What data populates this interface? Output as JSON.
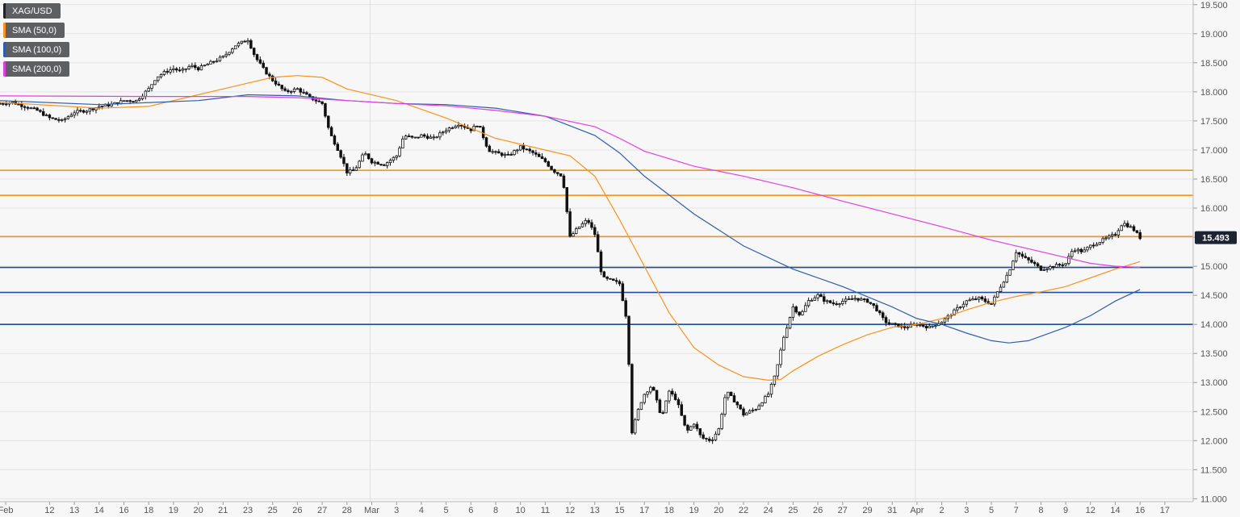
{
  "legend": [
    {
      "label": "XAG/USD",
      "color": "#222222",
      "icon": "square-swatch"
    },
    {
      "label": "SMA (50,0)",
      "color": "#f7931e",
      "icon": "square-swatch"
    },
    {
      "label": "SMA (100,0)",
      "color": "#2f5ea8",
      "icon": "square-swatch"
    },
    {
      "label": "SMA (200,0)",
      "color": "#e040e0",
      "icon": "square-swatch"
    }
  ],
  "last_price": {
    "label": "15.493",
    "value": 15.493,
    "color": "#1c2433"
  },
  "chart_data": {
    "type": "candlestick",
    "symbol": "XAG/USD",
    "y_ticks": [
      11.0,
      11.5,
      12.0,
      12.5,
      13.0,
      13.5,
      14.0,
      14.5,
      15.0,
      15.5,
      16.0,
      16.5,
      17.0,
      17.5,
      18.0,
      18.5,
      19.0,
      19.5
    ],
    "y_tick_labels": [
      "11.000",
      "11.500",
      "12.000",
      "12.500",
      "13.000",
      "13.500",
      "14.000",
      "14.500",
      "15.000",
      "15.500",
      "16.000",
      "16.500",
      "17.000",
      "17.500",
      "18.000",
      "18.500",
      "19.000",
      "19.500"
    ],
    "ylim": [
      10.95,
      19.58
    ],
    "x_labels": [
      "Feb",
      "12",
      "13",
      "14",
      "16",
      "18",
      "19",
      "20",
      "21",
      "23",
      "25",
      "26",
      "27",
      "28",
      "Mar",
      "3",
      "4",
      "5",
      "6",
      "8",
      "10",
      "11",
      "12",
      "13",
      "15",
      "17",
      "18",
      "19",
      "20",
      "22",
      "24",
      "25",
      "26",
      "27",
      "29",
      "31",
      "Apr",
      "2",
      "3",
      "5",
      "7",
      "8",
      "9",
      "12",
      "14",
      "16",
      "17"
    ],
    "x_label_sessions": [
      0,
      2,
      3,
      4,
      5,
      6,
      7,
      8,
      9,
      10,
      11,
      12,
      13,
      14,
      15,
      16,
      17,
      18,
      19,
      20,
      21,
      22,
      23,
      24,
      25,
      26,
      27,
      28,
      29,
      30,
      31,
      32,
      33,
      34,
      35,
      36,
      37,
      38,
      39,
      40,
      41,
      42,
      43,
      44,
      45,
      46,
      47
    ],
    "sessions": 48,
    "horizontal_levels": [
      {
        "value": 16.65,
        "color": "#f7931e"
      },
      {
        "value": 16.22,
        "color": "#f7931e"
      },
      {
        "value": 15.51,
        "color": "#f7931e"
      },
      {
        "value": 14.98,
        "color": "#1a4f9c"
      },
      {
        "value": 14.55,
        "color": "#1a4f9c"
      },
      {
        "value": 14.0,
        "color": "#1a4f9c"
      }
    ],
    "close_series": [
      [
        0,
        17.8
      ],
      [
        0.5,
        17.82
      ],
      [
        1,
        17.75
      ],
      [
        1.5,
        17.68
      ],
      [
        2,
        17.55
      ],
      [
        2.5,
        17.5
      ],
      [
        3,
        17.65
      ],
      [
        3.5,
        17.68
      ],
      [
        4,
        17.75
      ],
      [
        4.5,
        17.78
      ],
      [
        5,
        17.85
      ],
      [
        5.5,
        17.85
      ],
      [
        6,
        18.05
      ],
      [
        6.3,
        18.25
      ],
      [
        6.7,
        18.35
      ],
      [
        7,
        18.4
      ],
      [
        7.3,
        18.35
      ],
      [
        7.7,
        18.45
      ],
      [
        8,
        18.4
      ],
      [
        8.5,
        18.5
      ],
      [
        9,
        18.6
      ],
      [
        9.5,
        18.8
      ],
      [
        10,
        18.9
      ],
      [
        10.3,
        18.6
      ],
      [
        10.7,
        18.35
      ],
      [
        11,
        18.2
      ],
      [
        11.5,
        18.0
      ],
      [
        12,
        18.05
      ],
      [
        12.5,
        17.9
      ],
      [
        13,
        17.8
      ],
      [
        13.3,
        17.3
      ],
      [
        13.7,
        16.95
      ],
      [
        14,
        16.62
      ],
      [
        14.3,
        16.65
      ],
      [
        14.7,
        16.95
      ],
      [
        15,
        16.8
      ],
      [
        15.5,
        16.75
      ],
      [
        16,
        16.9
      ],
      [
        16.3,
        17.25
      ],
      [
        16.7,
        17.2
      ],
      [
        17,
        17.25
      ],
      [
        17.5,
        17.2
      ],
      [
        18,
        17.35
      ],
      [
        18.5,
        17.45
      ],
      [
        19,
        17.35
      ],
      [
        19.3,
        17.45
      ],
      [
        19.7,
        17.0
      ],
      [
        20,
        16.95
      ],
      [
        20.5,
        16.9
      ],
      [
        21,
        17.05
      ],
      [
        21.5,
        16.95
      ],
      [
        22,
        16.8
      ],
      [
        22.3,
        16.65
      ],
      [
        22.7,
        16.55
      ],
      [
        23,
        15.5
      ],
      [
        23.3,
        15.65
      ],
      [
        23.7,
        15.8
      ],
      [
        24,
        15.55
      ],
      [
        24.3,
        14.8
      ],
      [
        24.7,
        14.75
      ],
      [
        25,
        14.7
      ],
      [
        25.3,
        14.05
      ],
      [
        25.5,
        12.15
      ],
      [
        25.8,
        12.6
      ],
      [
        26,
        12.8
      ],
      [
        26.3,
        12.95
      ],
      [
        26.7,
        12.4
      ],
      [
        27,
        12.85
      ],
      [
        27.3,
        12.7
      ],
      [
        27.7,
        12.15
      ],
      [
        28,
        12.3
      ],
      [
        28.3,
        12.05
      ],
      [
        28.7,
        12.0
      ],
      [
        29,
        12.2
      ],
      [
        29.3,
        12.85
      ],
      [
        29.7,
        12.65
      ],
      [
        30,
        12.45
      ],
      [
        30.5,
        12.55
      ],
      [
        31,
        12.8
      ],
      [
        31.3,
        13.15
      ],
      [
        31.6,
        13.75
      ],
      [
        32,
        14.3
      ],
      [
        32.3,
        14.15
      ],
      [
        32.6,
        14.4
      ],
      [
        33,
        14.5
      ],
      [
        33.3,
        14.4
      ],
      [
        33.7,
        14.35
      ],
      [
        34,
        14.4
      ],
      [
        34.5,
        14.45
      ],
      [
        35,
        14.4
      ],
      [
        35.3,
        14.3
      ],
      [
        35.7,
        14.05
      ],
      [
        36,
        14.0
      ],
      [
        36.5,
        13.95
      ],
      [
        37,
        14.0
      ],
      [
        37.5,
        13.95
      ],
      [
        38,
        14.05
      ],
      [
        38.3,
        14.15
      ],
      [
        38.7,
        14.3
      ],
      [
        39,
        14.4
      ],
      [
        39.5,
        14.45
      ],
      [
        40,
        14.35
      ],
      [
        40.3,
        14.6
      ],
      [
        40.7,
        14.9
      ],
      [
        41,
        15.25
      ],
      [
        41.3,
        15.15
      ],
      [
        41.7,
        15.05
      ],
      [
        42,
        14.95
      ],
      [
        42.5,
        15.0
      ],
      [
        43,
        15.05
      ],
      [
        43.3,
        15.3
      ],
      [
        43.7,
        15.25
      ],
      [
        44,
        15.35
      ],
      [
        44.5,
        15.45
      ],
      [
        45,
        15.55
      ],
      [
        45.3,
        15.75
      ],
      [
        45.7,
        15.65
      ],
      [
        46,
        15.493
      ]
    ],
    "sma50": [
      [
        0,
        17.82
      ],
      [
        4,
        17.72
      ],
      [
        6,
        17.75
      ],
      [
        8,
        17.95
      ],
      [
        10,
        18.15
      ],
      [
        11,
        18.25
      ],
      [
        12,
        18.28
      ],
      [
        13,
        18.25
      ],
      [
        14,
        18.05
      ],
      [
        16,
        17.85
      ],
      [
        18,
        17.55
      ],
      [
        20,
        17.2
      ],
      [
        22,
        17.0
      ],
      [
        23,
        16.9
      ],
      [
        24,
        16.55
      ],
      [
        25,
        15.8
      ],
      [
        26,
        15.0
      ],
      [
        27,
        14.2
      ],
      [
        28,
        13.6
      ],
      [
        29,
        13.3
      ],
      [
        30,
        13.1
      ],
      [
        31,
        13.04
      ],
      [
        31.5,
        13.05
      ],
      [
        32,
        13.2
      ],
      [
        33,
        13.45
      ],
      [
        34,
        13.65
      ],
      [
        35,
        13.82
      ],
      [
        36,
        13.95
      ],
      [
        37,
        14.0
      ],
      [
        38,
        14.1
      ],
      [
        39,
        14.25
      ],
      [
        40,
        14.38
      ],
      [
        41,
        14.48
      ],
      [
        42,
        14.56
      ],
      [
        43,
        14.65
      ],
      [
        44,
        14.8
      ],
      [
        45,
        14.95
      ],
      [
        46,
        15.08
      ]
    ],
    "sma100": [
      [
        0,
        17.85
      ],
      [
        4,
        17.78
      ],
      [
        8,
        17.85
      ],
      [
        10,
        17.95
      ],
      [
        12,
        17.93
      ],
      [
        14,
        17.85
      ],
      [
        16,
        17.8
      ],
      [
        18,
        17.78
      ],
      [
        20,
        17.72
      ],
      [
        22,
        17.58
      ],
      [
        24,
        17.25
      ],
      [
        25,
        16.95
      ],
      [
        26,
        16.55
      ],
      [
        28,
        15.9
      ],
      [
        30,
        15.35
      ],
      [
        32,
        14.95
      ],
      [
        34,
        14.65
      ],
      [
        36,
        14.3
      ],
      [
        37,
        14.1
      ],
      [
        38,
        14.0
      ],
      [
        39,
        13.85
      ],
      [
        40,
        13.72
      ],
      [
        40.7,
        13.68
      ],
      [
        41.5,
        13.72
      ],
      [
        43,
        13.95
      ],
      [
        44,
        14.15
      ],
      [
        45,
        14.4
      ],
      [
        46,
        14.6
      ]
    ],
    "sma200": [
      [
        0,
        17.93
      ],
      [
        6,
        17.92
      ],
      [
        8,
        17.92
      ],
      [
        10,
        17.92
      ],
      [
        12,
        17.9
      ],
      [
        14,
        17.85
      ],
      [
        16,
        17.8
      ],
      [
        18,
        17.76
      ],
      [
        20,
        17.68
      ],
      [
        22,
        17.58
      ],
      [
        24,
        17.4
      ],
      [
        25,
        17.2
      ],
      [
        26,
        16.98
      ],
      [
        28,
        16.72
      ],
      [
        30,
        16.55
      ],
      [
        32,
        16.35
      ],
      [
        34,
        16.12
      ],
      [
        36,
        15.9
      ],
      [
        38,
        15.68
      ],
      [
        40,
        15.45
      ],
      [
        41,
        15.35
      ],
      [
        42,
        15.25
      ],
      [
        43,
        15.15
      ],
      [
        44,
        15.05
      ],
      [
        45,
        15.0
      ],
      [
        46,
        14.98
      ]
    ]
  }
}
